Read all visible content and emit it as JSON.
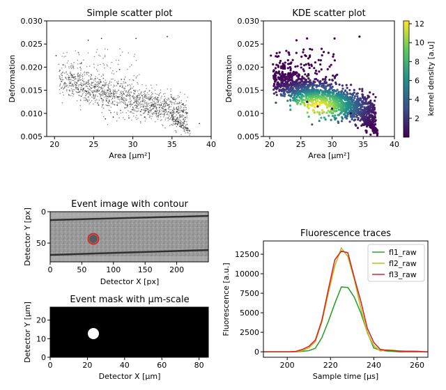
{
  "chart_data": [
    {
      "type": "scatter",
      "title": "Simple scatter plot",
      "xlabel": "Area [μm²]",
      "ylabel": "Deformation",
      "xlim": [
        19,
        40
      ],
      "ylim": [
        0.005,
        0.03
      ],
      "xticks": [
        "20",
        "25",
        "30",
        "35",
        "40"
      ],
      "yticks": [
        "0.005",
        "0.010",
        "0.015",
        "0.020",
        "0.025",
        "0.030"
      ],
      "marker_color": "#000000",
      "points": [
        [
          20.2,
          0.0225
        ],
        [
          21.1,
          0.0205
        ],
        [
          23.4,
          0.0208
        ],
        [
          24.3,
          0.0258
        ],
        [
          26.0,
          0.0262
        ],
        [
          28.3,
          0.0195
        ],
        [
          30.4,
          0.0262
        ],
        [
          34.4,
          0.0266
        ],
        [
          22.0,
          0.0165
        ],
        [
          23.0,
          0.0152
        ],
        [
          24.0,
          0.0148
        ],
        [
          25.0,
          0.0138
        ],
        [
          26.0,
          0.0132
        ],
        [
          27.0,
          0.0126
        ],
        [
          28.0,
          0.0118
        ],
        [
          29.0,
          0.0112
        ],
        [
          30.0,
          0.0108
        ],
        [
          31.0,
          0.0104
        ],
        [
          32.0,
          0.0102
        ],
        [
          33.0,
          0.0099
        ],
        [
          34.0,
          0.0098
        ],
        [
          35.0,
          0.0094
        ],
        [
          36.0,
          0.0072
        ],
        [
          37.0,
          0.0068
        ],
        [
          38.5,
          0.0078
        ],
        [
          26.5,
          0.0088
        ],
        [
          27.5,
          0.0092
        ],
        [
          29.5,
          0.009
        ],
        [
          31.5,
          0.0092
        ],
        [
          34.5,
          0.009
        ]
      ]
    },
    {
      "type": "scatter",
      "title": "KDE scatter plot",
      "xlabel": "Area [μm²]",
      "ylabel": "Deformation",
      "xlim": [
        19,
        40
      ],
      "ylim": [
        0.005,
        0.03
      ],
      "xticks": [
        "20",
        "25",
        "30",
        "35",
        "40"
      ],
      "yticks": [
        "0.005",
        "0.010",
        "0.015",
        "0.020",
        "0.025",
        "0.030"
      ],
      "colorbar_label": "kernel density [a.u]",
      "colorbar_ticks": [
        "2",
        "4",
        "6",
        "8",
        "10",
        "12"
      ],
      "colorbar_range": [
        0,
        12.3
      ],
      "colormap": [
        "#440154",
        "#3b528b",
        "#21918c",
        "#5ec962",
        "#fde725"
      ],
      "density_peak": [
        27.7,
        0.0115
      ],
      "points": [
        [
          20.2,
          0.0225
        ],
        [
          21.1,
          0.0205
        ],
        [
          23.4,
          0.0208
        ],
        [
          24.3,
          0.0258
        ],
        [
          26.0,
          0.0262
        ],
        [
          28.3,
          0.0195
        ],
        [
          30.4,
          0.0262
        ],
        [
          34.4,
          0.0266
        ],
        [
          27.7,
          0.0115
        ],
        [
          26.0,
          0.0125
        ],
        [
          30.0,
          0.011
        ],
        [
          33.0,
          0.01
        ],
        [
          36.2,
          0.0075
        ],
        [
          37.0,
          0.0085
        ]
      ]
    },
    {
      "type": "line",
      "title": "Fluorescence traces",
      "xlabel": "Sample time [μs]",
      "ylabel": "Fluorescence [a.u.]",
      "xlim": [
        189,
        265
      ],
      "ylim": [
        -700,
        14200
      ],
      "xticks": [
        "200",
        "220",
        "240",
        "260"
      ],
      "yticks": [
        "0",
        "2500",
        "5000",
        "7500",
        "10000",
        "12500"
      ],
      "legend_position": "top-right",
      "x": [
        189,
        192,
        195,
        198,
        201,
        204,
        207,
        210,
        213,
        216,
        219,
        222,
        225,
        228,
        231,
        234,
        237,
        240,
        243,
        246,
        249,
        252,
        255,
        258,
        261,
        264,
        265
      ],
      "series": [
        {
          "name": "fl1_raw",
          "color": "#2ca02c",
          "values": [
            0,
            0,
            0,
            0,
            0,
            0,
            60,
            150,
            450,
            1800,
            3900,
            6200,
            8300,
            8250,
            7000,
            5000,
            2500,
            500,
            200,
            100,
            50,
            0,
            0,
            0,
            0,
            0,
            0
          ]
        },
        {
          "name": "fl2_raw",
          "color": "#bcbd22",
          "values": [
            0,
            0,
            0,
            0,
            0,
            20,
            150,
            500,
            1300,
            3800,
            7500,
            11000,
            13300,
            12200,
            9300,
            5600,
            2400,
            800,
            100,
            250,
            200,
            100,
            50,
            80,
            30,
            0,
            0
          ]
        },
        {
          "name": "fl3_raw",
          "color": "#d62728",
          "values": [
            0,
            0,
            0,
            0,
            0,
            60,
            300,
            700,
            1500,
            4000,
            8000,
            11800,
            12900,
            12700,
            9500,
            6500,
            3000,
            1200,
            300,
            200,
            150,
            100,
            80,
            80,
            50,
            0,
            0
          ]
        }
      ]
    }
  ],
  "image_panels": {
    "event_image": {
      "title": "Event image with contour",
      "xlabel": "Detector X [px]",
      "ylabel": "Detector Y [px]",
      "xticks": [
        "0",
        "50",
        "100",
        "150",
        "200"
      ],
      "yticks": [
        "0",
        "50"
      ],
      "xlim": [
        0,
        250
      ],
      "ylim": [
        0,
        80
      ],
      "contour_color": "#d62728",
      "event_center": [
        68,
        44
      ]
    },
    "event_mask": {
      "title": "Event mask with μm-scale",
      "xlabel": "Detector X [μm]",
      "ylabel": "Detector Y [μm]",
      "xticks": [
        "0",
        "20",
        "40",
        "60",
        "80"
      ],
      "yticks": [
        "0",
        "10",
        "20"
      ],
      "xlim": [
        0,
        85
      ],
      "ylim": [
        0,
        27
      ],
      "event_center": [
        23.3,
        12.5
      ]
    }
  }
}
